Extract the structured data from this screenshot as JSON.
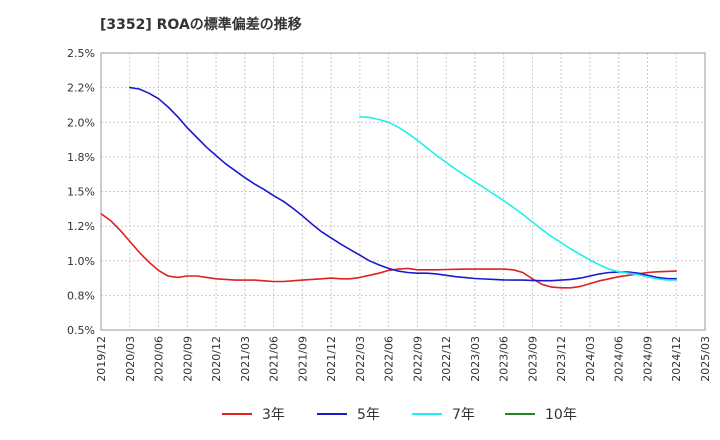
{
  "chart_data": {
    "type": "line",
    "title": "[3352]  ROAの標準偏差の推移",
    "xlabel": "",
    "ylabel": "",
    "ylim": [
      0.5,
      2.5
    ],
    "grid": true,
    "legend_position": "bottom",
    "x_ticks": [
      "2019/12",
      "2020/03",
      "2020/06",
      "2020/09",
      "2020/12",
      "2021/03",
      "2021/06",
      "2021/09",
      "2021/12",
      "2022/03",
      "2022/06",
      "2022/09",
      "2022/12",
      "2023/03",
      "2023/06",
      "2023/09",
      "2023/12",
      "2024/03",
      "2024/06",
      "2024/09",
      "2024/12",
      "2025/03"
    ],
    "y_ticks": [
      "0.5%",
      "0.8%",
      "1.0%",
      "1.2%",
      "1.5%",
      "1.8%",
      "2.0%",
      "2.2%",
      "2.5%"
    ],
    "y_tick_values": [
      0.5,
      0.75,
      1.0,
      1.25,
      1.5,
      1.75,
      2.0,
      2.25,
      2.5
    ],
    "series": [
      {
        "name": "3年",
        "color": "#dd2222",
        "x": [
          "2019/12",
          "2020/01",
          "2020/02",
          "2020/03",
          "2020/04",
          "2020/05",
          "2020/06",
          "2020/07",
          "2020/08",
          "2020/09",
          "2020/10",
          "2020/11",
          "2020/12",
          "2021/01",
          "2021/02",
          "2021/03",
          "2021/04",
          "2021/05",
          "2021/06",
          "2021/07",
          "2021/08",
          "2021/09",
          "2021/10",
          "2021/11",
          "2021/12",
          "2022/01",
          "2022/02",
          "2022/03",
          "2022/04",
          "2022/05",
          "2022/06",
          "2022/07",
          "2022/08",
          "2022/09",
          "2022/10",
          "2022/11",
          "2022/12",
          "2023/01",
          "2023/02",
          "2023/03",
          "2023/04",
          "2023/05",
          "2023/06",
          "2023/07",
          "2023/08",
          "2023/09",
          "2023/10",
          "2023/11",
          "2023/12",
          "2024/01",
          "2024/02",
          "2024/03",
          "2024/04",
          "2024/05",
          "2024/06",
          "2024/07",
          "2024/08",
          "2024/09",
          "2024/10",
          "2024/11",
          "2024/12"
        ],
        "values": [
          1.34,
          1.29,
          1.22,
          1.14,
          1.06,
          0.99,
          0.93,
          0.89,
          0.88,
          0.89,
          0.89,
          0.88,
          0.87,
          0.865,
          0.86,
          0.86,
          0.86,
          0.855,
          0.85,
          0.85,
          0.855,
          0.86,
          0.865,
          0.87,
          0.875,
          0.87,
          0.87,
          0.88,
          0.895,
          0.91,
          0.93,
          0.94,
          0.945,
          0.935,
          0.935,
          0.935,
          0.937,
          0.938,
          0.94,
          0.94,
          0.94,
          0.94,
          0.94,
          0.935,
          0.915,
          0.87,
          0.83,
          0.81,
          0.805,
          0.805,
          0.815,
          0.835,
          0.855,
          0.87,
          0.885,
          0.895,
          0.905,
          0.915,
          0.92,
          0.923,
          0.925
        ]
      },
      {
        "name": "5年",
        "color": "#1a1acc",
        "x": [
          "2020/03",
          "2020/04",
          "2020/05",
          "2020/06",
          "2020/07",
          "2020/08",
          "2020/09",
          "2020/10",
          "2020/11",
          "2020/12",
          "2021/01",
          "2021/02",
          "2021/03",
          "2021/04",
          "2021/05",
          "2021/06",
          "2021/07",
          "2021/08",
          "2021/09",
          "2021/10",
          "2021/11",
          "2021/12",
          "2022/01",
          "2022/02",
          "2022/03",
          "2022/04",
          "2022/05",
          "2022/06",
          "2022/07",
          "2022/08",
          "2022/09",
          "2022/10",
          "2022/11",
          "2022/12",
          "2023/01",
          "2023/02",
          "2023/03",
          "2023/04",
          "2023/05",
          "2023/06",
          "2023/07",
          "2023/08",
          "2023/09",
          "2023/10",
          "2023/11",
          "2023/12",
          "2024/01",
          "2024/02",
          "2024/03",
          "2024/04",
          "2024/05",
          "2024/06",
          "2024/07",
          "2024/08",
          "2024/09",
          "2024/10",
          "2024/11",
          "2024/12"
        ],
        "values": [
          2.25,
          2.24,
          2.21,
          2.17,
          2.11,
          2.04,
          1.96,
          1.89,
          1.82,
          1.76,
          1.7,
          1.65,
          1.6,
          1.555,
          1.515,
          1.47,
          1.43,
          1.38,
          1.325,
          1.265,
          1.21,
          1.165,
          1.12,
          1.08,
          1.04,
          1.0,
          0.97,
          0.945,
          0.925,
          0.915,
          0.91,
          0.91,
          0.905,
          0.895,
          0.885,
          0.878,
          0.872,
          0.868,
          0.865,
          0.862,
          0.86,
          0.86,
          0.858,
          0.856,
          0.856,
          0.86,
          0.865,
          0.875,
          0.89,
          0.905,
          0.915,
          0.918,
          0.918,
          0.91,
          0.895,
          0.88,
          0.872,
          0.87
        ]
      },
      {
        "name": "7年",
        "color": "#22eeee",
        "x": [
          "2022/03",
          "2022/04",
          "2022/05",
          "2022/06",
          "2022/07",
          "2022/08",
          "2022/09",
          "2022/10",
          "2022/11",
          "2022/12",
          "2023/01",
          "2023/02",
          "2023/03",
          "2023/04",
          "2023/05",
          "2023/06",
          "2023/07",
          "2023/08",
          "2023/09",
          "2023/10",
          "2023/11",
          "2023/12",
          "2024/01",
          "2024/02",
          "2024/03",
          "2024/04",
          "2024/05",
          "2024/06",
          "2024/07",
          "2024/08",
          "2024/09",
          "2024/10",
          "2024/11",
          "2024/12"
        ],
        "values": [
          2.04,
          2.035,
          2.02,
          2.0,
          1.965,
          1.92,
          1.87,
          1.815,
          1.76,
          1.71,
          1.66,
          1.615,
          1.57,
          1.525,
          1.48,
          1.435,
          1.385,
          1.335,
          1.28,
          1.225,
          1.175,
          1.13,
          1.085,
          1.045,
          1.005,
          0.97,
          0.94,
          0.92,
          0.91,
          0.9,
          0.885,
          0.87,
          0.862,
          0.86
        ]
      },
      {
        "name": "10年",
        "color": "#228822",
        "x": [],
        "values": []
      }
    ]
  }
}
